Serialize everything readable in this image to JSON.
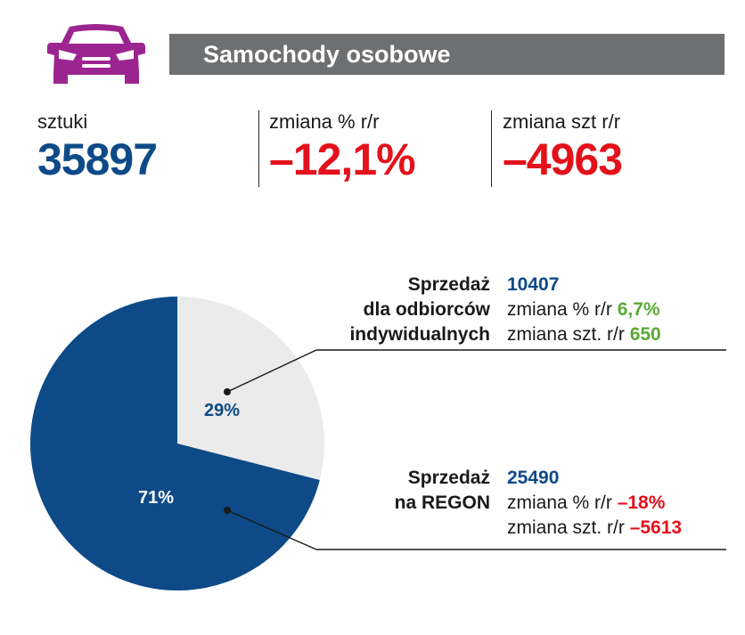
{
  "colors": {
    "brand_purple": "#9c2490",
    "title_bar": "#6d6f71",
    "blue": "#0d4a87",
    "red": "#e3111b",
    "green": "#5aaa35",
    "slice_light": "#ebebeb"
  },
  "header": {
    "icon": "car-icon",
    "title": "Samochody osobowe"
  },
  "stats": [
    {
      "label": "sztuki",
      "value": "35897",
      "color": "blue"
    },
    {
      "label": "zmiana % r/r",
      "value": "–12,1%",
      "color": "red"
    },
    {
      "label": "zmiana szt r/r",
      "value": "–4963",
      "color": "red"
    }
  ],
  "segments": {
    "individual": {
      "heading_lines": [
        "Sprzedaż",
        "dla odbiorców",
        "indywidualnych"
      ],
      "units": "10407",
      "pct_change_label": "zmiana % r/r",
      "pct_change_value": "6,7%",
      "unit_change_label": "zmiana szt. r/r",
      "unit_change_value": "650"
    },
    "regon": {
      "heading_lines": [
        "Sprzedaż",
        "na REGON"
      ],
      "units": "25490",
      "pct_change_label": "zmiana % r/r",
      "pct_change_value": "–18%",
      "unit_change_label": "zmiana szt. r/r",
      "unit_change_value": "–5613"
    }
  },
  "chart_data": {
    "type": "pie",
    "title": "",
    "slices": [
      {
        "label": "Sprzedaż dla odbiorców indywidualnych",
        "value": 29,
        "display": "29%",
        "color": "#ebebeb",
        "label_color": "#0d4a87"
      },
      {
        "label": "Sprzedaż na REGON",
        "value": 71,
        "display": "71%",
        "color": "#0d4a87",
        "label_color": "#ffffff"
      }
    ],
    "start": "top, clockwise"
  }
}
